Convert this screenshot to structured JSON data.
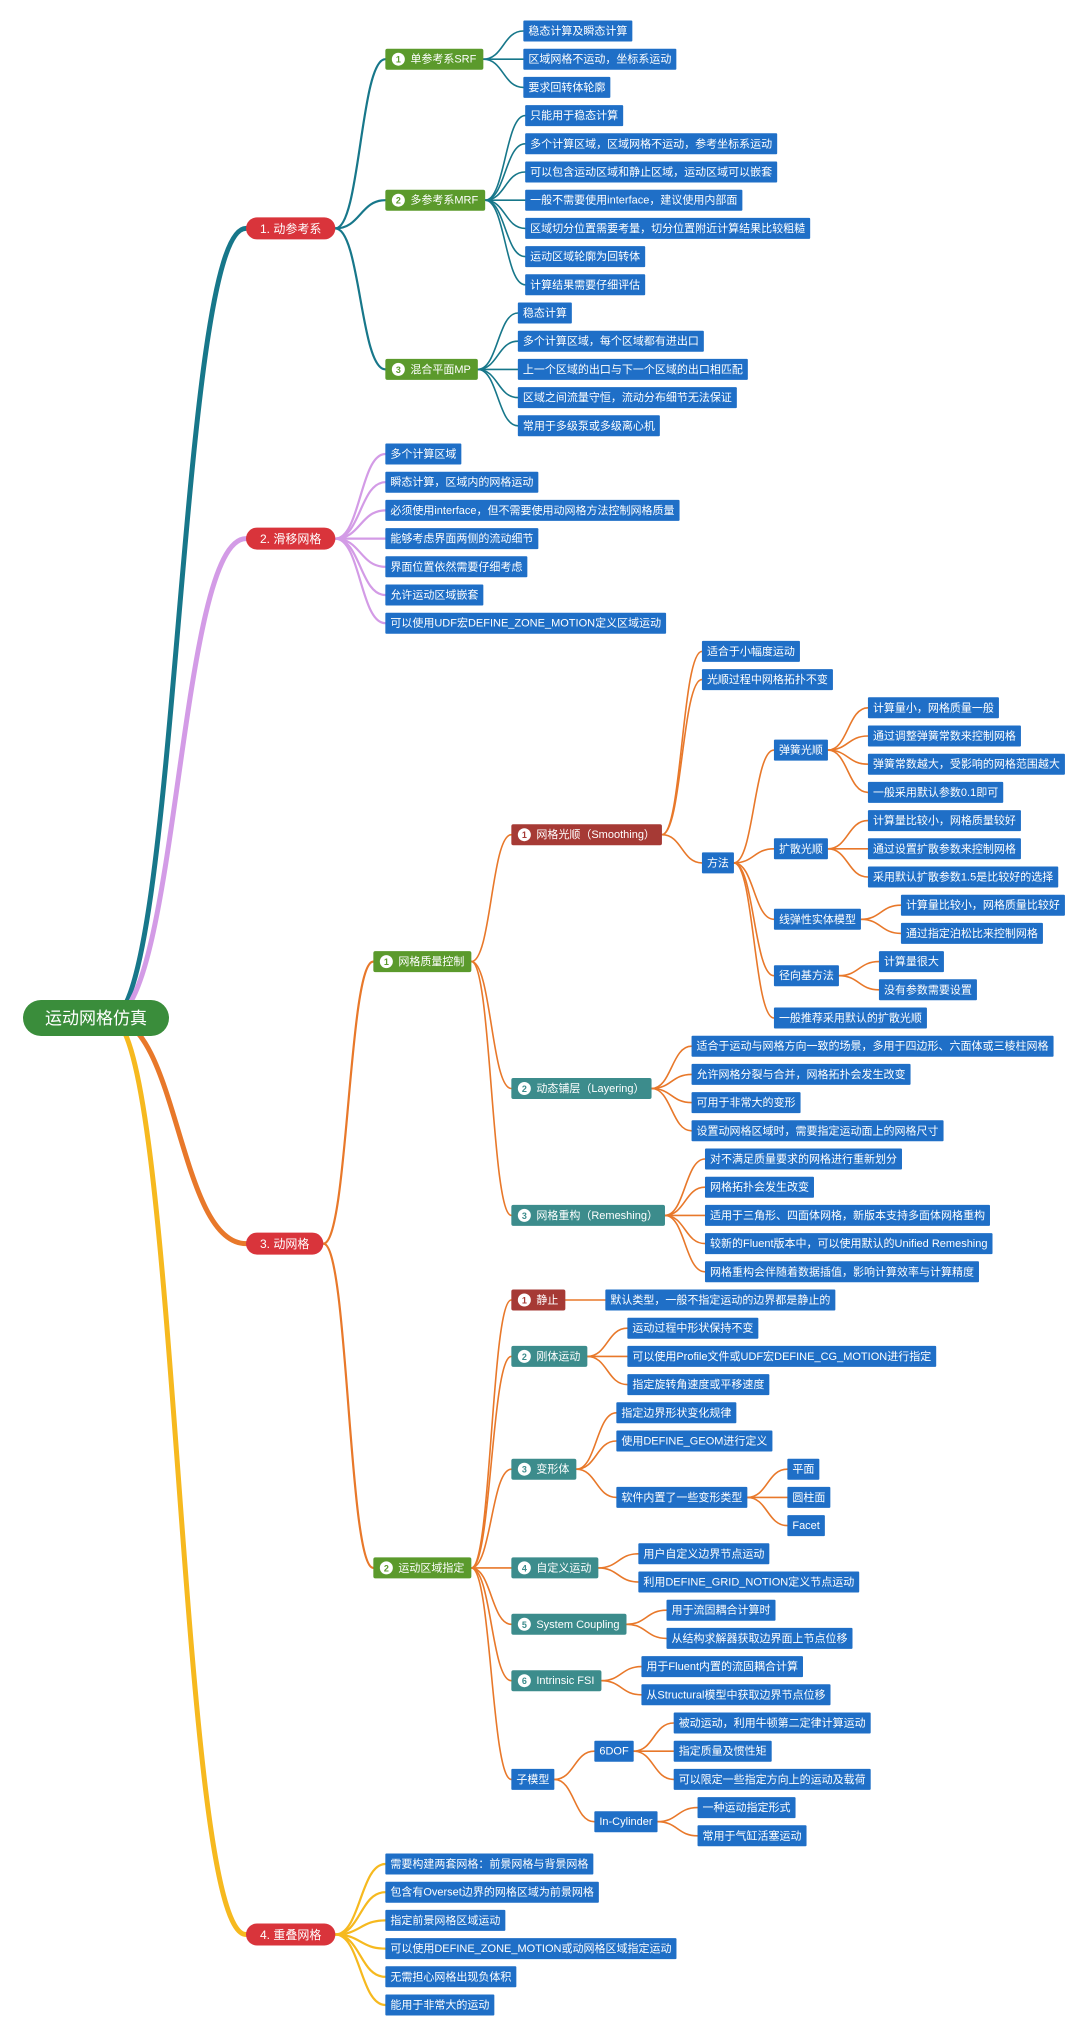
{
  "root": {
    "label": "运动网格仿真",
    "children": [
      {
        "label": "1. 动参考系",
        "children": [
          {
            "num": "1",
            "label": "单参考系SRF",
            "children": [
              {
                "label": "稳态计算及瞬态计算"
              },
              {
                "label": "区域网格不运动，坐标系运动"
              },
              {
                "label": "要求回转体轮廓"
              }
            ]
          },
          {
            "num": "2",
            "label": "多参考系MRF",
            "children": [
              {
                "label": "只能用于稳态计算"
              },
              {
                "label": "多个计算区域，区域网格不运动，参考坐标系运动"
              },
              {
                "label": "可以包含运动区域和静止区域，运动区域可以嵌套"
              },
              {
                "label": "一般不需要使用interface，建议使用内部面"
              },
              {
                "label": "区域切分位置需要考量，切分位置附近计算结果比较粗糙"
              },
              {
                "label": "运动区域轮廓为回转体"
              },
              {
                "label": "计算结果需要仔细评估"
              }
            ]
          },
          {
            "num": "3",
            "label": "混合平面MP",
            "children": [
              {
                "label": "稳态计算"
              },
              {
                "label": "多个计算区域，每个区域都有进出口"
              },
              {
                "label": "上一个区域的出口与下一个区域的出口相匹配"
              },
              {
                "label": "区域之间流量守恒，流动分布细节无法保证"
              },
              {
                "label": "常用于多级泵或多级离心机"
              }
            ]
          }
        ]
      },
      {
        "label": "2. 滑移网格",
        "children": [
          {
            "label": "多个计算区域"
          },
          {
            "label": "瞬态计算，区域内的网格运动"
          },
          {
            "label": "必须使用interface，但不需要使用动网格方法控制网格质量"
          },
          {
            "label": "能够考虑界面两侧的流动细节"
          },
          {
            "label": "界面位置依然需要仔细考虑"
          },
          {
            "label": "允许运动区域嵌套"
          },
          {
            "label": "可以使用UDF宏DEFINE_ZONE_MOTION定义区域运动"
          }
        ]
      },
      {
        "label": "3. 动网格",
        "children": [
          {
            "num": "1",
            "label": "网格质量控制",
            "children": [
              {
                "num": "1",
                "label": "网格光顺（Smoothing）",
                "children": [
                  {
                    "label": "适合于小幅度运动"
                  },
                  {
                    "label": "光顺过程中网格拓扑不变"
                  },
                  {
                    "label": "方法",
                    "children": [
                      {
                        "label": "弹簧光顺",
                        "children": [
                          {
                            "label": "计算量小，网格质量一般"
                          },
                          {
                            "label": "通过调整弹簧常数来控制网格"
                          },
                          {
                            "label": "弹簧常数越大，受影响的网格范围越大"
                          },
                          {
                            "label": "一般采用默认参数0.1即可"
                          }
                        ]
                      },
                      {
                        "label": "扩散光顺",
                        "children": [
                          {
                            "label": "计算量比较小，网格质量较好"
                          },
                          {
                            "label": "通过设置扩散参数来控制网格"
                          },
                          {
                            "label": "采用默认扩散参数1.5是比较好的选择"
                          }
                        ]
                      },
                      {
                        "label": "线弹性实体模型",
                        "children": [
                          {
                            "label": "计算量比较小，网格质量比较好"
                          },
                          {
                            "label": "通过指定泊松比来控制网格"
                          }
                        ]
                      },
                      {
                        "label": "径向基方法",
                        "children": [
                          {
                            "label": "计算量很大"
                          },
                          {
                            "label": "没有参数需要设置"
                          }
                        ]
                      },
                      {
                        "label": "一般推荐采用默认的扩散光顺"
                      }
                    ]
                  }
                ]
              },
              {
                "num": "2",
                "label": "动态铺层（Layering）",
                "children": [
                  {
                    "label": "适合于运动与网格方向一致的场景，多用于四边形、六面体或三棱柱网格"
                  },
                  {
                    "label": "允许网格分裂与合并，网格拓扑会发生改变"
                  },
                  {
                    "label": "可用于非常大的变形"
                  },
                  {
                    "label": "设置动网格区域时，需要指定运动面上的网格尺寸"
                  }
                ]
              },
              {
                "num": "3",
                "label": "网格重构（Remeshing）",
                "children": [
                  {
                    "label": "对不满足质量要求的网格进行重新划分"
                  },
                  {
                    "label": "网格拓扑会发生改变"
                  },
                  {
                    "label": "适用于三角形、四面体网格，新版本支持多面体网格重构"
                  },
                  {
                    "label": "较新的Fluent版本中，可以使用默认的Unified Remeshing"
                  },
                  {
                    "label": "网格重构会伴随着数据插值，影响计算效率与计算精度"
                  }
                ]
              }
            ]
          },
          {
            "num": "2",
            "label": "运动区域指定",
            "children": [
              {
                "num": "1",
                "label": "静止",
                "children": [
                  {
                    "label": "默认类型，一般不指定运动的边界都是静止的"
                  }
                ]
              },
              {
                "num": "2",
                "label": "刚体运动",
                "children": [
                  {
                    "label": "运动过程中形状保持不变"
                  },
                  {
                    "label": "可以使用Profile文件或UDF宏DEFINE_CG_MOTION进行指定"
                  },
                  {
                    "label": "指定旋转角速度或平移速度"
                  }
                ]
              },
              {
                "num": "3",
                "label": "变形体",
                "children": [
                  {
                    "label": "指定边界形状变化规律"
                  },
                  {
                    "label": "使用DEFINE_GEOM进行定义"
                  },
                  {
                    "label": "软件内置了一些变形类型",
                    "children": [
                      {
                        "label": "平面"
                      },
                      {
                        "label": "圆柱面"
                      },
                      {
                        "label": "Facet"
                      }
                    ]
                  }
                ]
              },
              {
                "num": "4",
                "label": "自定义运动",
                "children": [
                  {
                    "label": "用户自定义边界节点运动"
                  },
                  {
                    "label": "利用DEFINE_GRID_NOTION定义节点运动"
                  }
                ]
              },
              {
                "num": "5",
                "label": "System Coupling",
                "children": [
                  {
                    "label": "用于流固耦合计算时"
                  },
                  {
                    "label": "从结构求解器获取边界面上节点位移"
                  }
                ]
              },
              {
                "num": "6",
                "label": "Intrinsic FSI",
                "children": [
                  {
                    "label": "用于Fluent内置的流固耦合计算"
                  },
                  {
                    "label": "从Structural模型中获取边界节点位移"
                  }
                ]
              },
              {
                "label": "子模型",
                "children": [
                  {
                    "label": "6DOF",
                    "children": [
                      {
                        "label": "被动运动，利用牛顿第二定律计算运动"
                      },
                      {
                        "label": "指定质量及惯性矩"
                      },
                      {
                        "label": "可以限定一些指定方向上的运动及载荷"
                      }
                    ]
                  },
                  {
                    "label": "In-Cylinder",
                    "children": [
                      {
                        "label": "一种运动指定形式"
                      },
                      {
                        "label": "常用于气缸活塞运动"
                      }
                    ]
                  }
                ]
              }
            ]
          }
        ]
      },
      {
        "label": "4. 重叠网格",
        "children": [
          {
            "label": "需要构建两套网格：前景网格与背景网格"
          },
          {
            "label": "包含有Overset边界的网格区域为前景网格"
          },
          {
            "label": "指定前景网格区域运动"
          },
          {
            "label": "可以使用DEFINE_ZONE_MOTION或动网格区域指定运动"
          },
          {
            "label": "无需担心网格出现负体积"
          },
          {
            "label": "能用于非常大的运动"
          }
        ]
      }
    ]
  }
}
